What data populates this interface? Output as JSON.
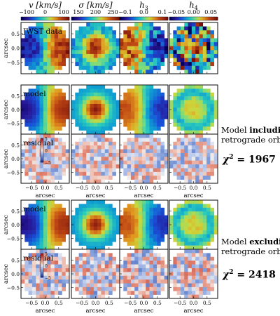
{
  "figure": {
    "columns": [
      {
        "symbol": "v",
        "unit": "[km/s]",
        "ticks": [
          "−100",
          "0",
          "100"
        ],
        "range": [
          -130,
          130
        ]
      },
      {
        "symbol": "σ",
        "unit": "[km/s]",
        "ticks": [
          "150",
          "200",
          "250"
        ],
        "range": [
          130,
          270
        ]
      },
      {
        "symbol": "h",
        "sub": "3",
        "unit": "",
        "ticks": [
          "−0.1",
          "0.0",
          "0.1"
        ],
        "range": [
          -0.13,
          0.13
        ]
      },
      {
        "symbol": "h",
        "sub": "4",
        "unit": "",
        "ticks": [
          "−0.05",
          "0.00",
          "0.05"
        ],
        "range": [
          -0.07,
          0.07
        ]
      }
    ],
    "y_axis_label": "arcsec",
    "x_axis_label": "arcsec",
    "y_ticks": [
      "0.5",
      "0.0",
      "−0.5"
    ],
    "x_ticks": [
      "−0.5",
      "0.0",
      "0.5"
    ],
    "residual_colorbar_ticks": [
      "5",
      "0",
      "−5"
    ],
    "row_labels": {
      "data": "JWST data",
      "model1": "model",
      "residual1": "residual",
      "model2": "model",
      "residual2": "residual"
    }
  },
  "annotations": {
    "including": {
      "line1_prefix": "Model ",
      "line1_bold": "including",
      "line2": "retrograde orbits",
      "chi_symbol": "χ",
      "chi_power": "2",
      "chi_value": " = 1967"
    },
    "excluding": {
      "line1_prefix": "Model ",
      "line1_bold": "excluding",
      "line2": "retrograde orbits",
      "chi_symbol": "χ",
      "chi_power": "2",
      "chi_value": " = 2418"
    }
  },
  "chart_data": {
    "type": "heatmap",
    "grid": "2D spatial maps on a circular field of view of radius ~0.8 arcsec",
    "columns": [
      "v [km/s]",
      "σ [km/s]",
      "h3",
      "h4"
    ],
    "rows": [
      "JWST data",
      "model (including retrograde orbits)",
      "residual",
      "model (excluding retrograde orbits)",
      "residual"
    ],
    "colorbar_ranges": {
      "v": [
        -100,
        100
      ],
      "sigma": [
        150,
        250
      ],
      "h3": [
        -0.1,
        0.1
      ],
      "h4": [
        -0.05,
        0.05
      ],
      "residual": [
        -5,
        5
      ]
    },
    "fit_statistics": [
      {
        "model": "including retrograde orbits",
        "chi2": 1967
      },
      {
        "model": "excluding retrograde orbits",
        "chi2": 2418
      }
    ],
    "xlim": [
      -0.8,
      0.8
    ],
    "ylim": [
      -0.8,
      0.8
    ]
  }
}
